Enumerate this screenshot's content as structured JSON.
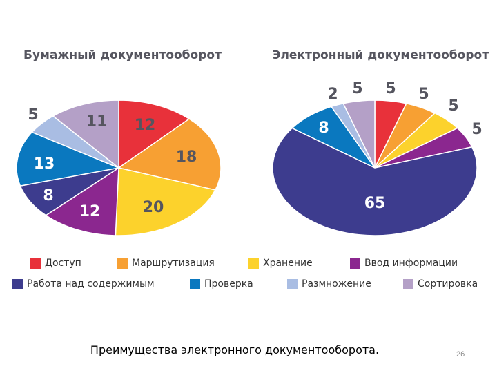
{
  "chart_data": [
    {
      "type": "pie",
      "title": "Бумажный документооборот",
      "categories": [
        "Доступ",
        "Маршрутизация",
        "Хранение",
        "Ввод информации",
        "Работа над содержимым",
        "Проверка",
        "Размножение",
        "Сортировка"
      ],
      "values": [
        12,
        18,
        20,
        12,
        8,
        13,
        5,
        11
      ],
      "value_labels": [
        "12",
        "18",
        "20",
        "12",
        "8",
        "13",
        "5",
        "11"
      ],
      "colors": [
        "#e8313a",
        "#f7a033",
        "#fcd22c",
        "#8b278f",
        "#3d3c8e",
        "#0a78bf",
        "#a9bde3",
        "#b4a0c7"
      ]
    },
    {
      "type": "pie",
      "title": "Электронный документооборот",
      "categories": [
        "Доступ",
        "Маршрутизация",
        "Хранение",
        "Ввод информации",
        "Работа над содержимым",
        "Проверка",
        "Размножение",
        "Сортировка"
      ],
      "values": [
        5,
        5,
        5,
        5,
        65,
        8,
        2,
        5
      ],
      "value_labels": [
        "5",
        "5",
        "5",
        "5",
        "65",
        "8",
        "2",
        "5"
      ],
      "colors": [
        "#e8313a",
        "#f7a033",
        "#fcd22c",
        "#8b278f",
        "#3d3c8e",
        "#0a78bf",
        "#a9bde3",
        "#b4a0c7"
      ]
    }
  ],
  "legend": {
    "placement": "bottom",
    "items": [
      {
        "label": "Доступ",
        "color": "#e8313a"
      },
      {
        "label": "Маршрутизация",
        "color": "#f7a033"
      },
      {
        "label": "Хранение",
        "color": "#fcd22c"
      },
      {
        "label": "Ввод информации",
        "color": "#8b278f"
      },
      {
        "label": "Работа над содержимым",
        "color": "#3d3c8e"
      },
      {
        "label": "Проверка",
        "color": "#0a78bf"
      },
      {
        "label": "Размножение",
        "color": "#a9bde3"
      },
      {
        "label": "Сортировка",
        "color": "#b4a0c7"
      }
    ]
  },
  "caption": "Преимущества электронного документооборота.",
  "page_number": "26"
}
